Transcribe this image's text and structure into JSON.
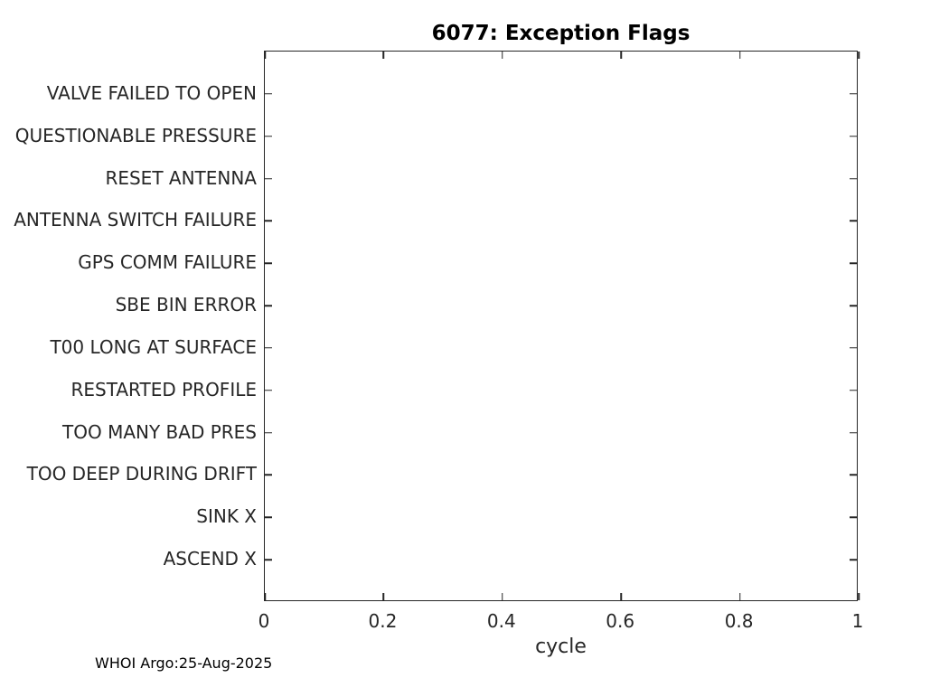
{
  "figure": {
    "title": "6077: Exception Flags",
    "footer": "WHOI Argo:25-Aug-2025"
  },
  "chart_data": {
    "type": "scatter",
    "title": "6077: Exception Flags",
    "xlabel": "cycle",
    "ylabel": "",
    "xlim": [
      0,
      1
    ],
    "x_ticks": [
      0,
      0.2,
      0.4,
      0.6,
      0.8,
      1
    ],
    "x_tick_labels": [
      "0",
      "0.2",
      "0.4",
      "0.6",
      "0.8",
      "1"
    ],
    "y_categories_top_to_bottom": [
      "VALVE FAILED TO OPEN",
      "QUESTIONABLE PRESSURE",
      "RESET ANTENNA",
      "ANTENNA SWITCH FAILURE",
      "GPS COMM FAILURE",
      "SBE BIN ERROR",
      "T00 LONG AT SURFACE",
      "RESTARTED PROFILE",
      "TOO MANY BAD PRES",
      "TOO DEEP DURING DRIFT",
      "SINK X",
      "ASCEND X"
    ],
    "series": [],
    "grid": false,
    "box": true,
    "tick_direction": "in",
    "legend": "none",
    "annotation": "WHOI Argo:25-Aug-2025",
    "colors": {
      "axis": "#262626",
      "tick_label": "#262626",
      "title": "#000000",
      "background": "#ffffff"
    }
  }
}
